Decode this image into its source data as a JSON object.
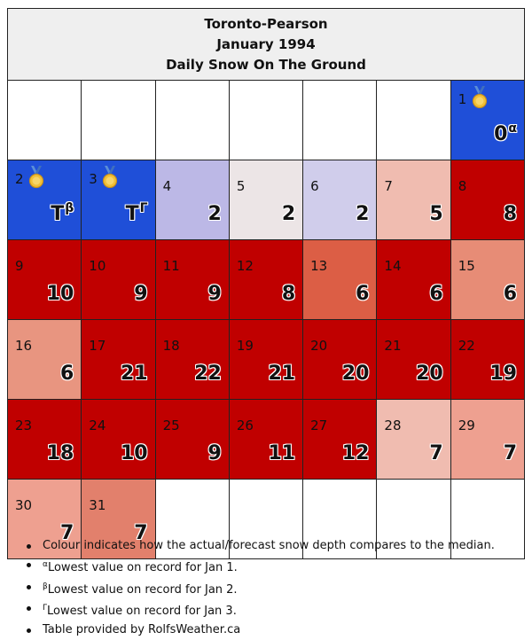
{
  "header": {
    "station": "Toronto-Pearson",
    "month": "January 1994",
    "title": "Daily Snow On The Ground"
  },
  "weeks": [
    [
      null,
      null,
      null,
      null,
      null,
      null,
      {
        "day": "1",
        "value": "0",
        "mark": "α",
        "medal": true,
        "color": "#1f4fd8"
      }
    ],
    [
      {
        "day": "2",
        "value": "T",
        "mark": "β",
        "medal": true,
        "color": "#1f4fd8"
      },
      {
        "day": "3",
        "value": "T",
        "mark": "Γ",
        "medal": true,
        "color": "#1f4fd8"
      },
      {
        "day": "4",
        "value": "2",
        "color": "#bcb8e6"
      },
      {
        "day": "5",
        "value": "2",
        "color": "#ece5e6"
      },
      {
        "day": "6",
        "value": "2",
        "color": "#d0cdeb"
      },
      {
        "day": "7",
        "value": "5",
        "color": "#f0bcb0"
      },
      {
        "day": "8",
        "value": "8",
        "color": "#c00000"
      }
    ],
    [
      {
        "day": "9",
        "value": "10",
        "color": "#c00000"
      },
      {
        "day": "10",
        "value": "9",
        "color": "#c00000"
      },
      {
        "day": "11",
        "value": "9",
        "color": "#c00000"
      },
      {
        "day": "12",
        "value": "8",
        "color": "#c00000"
      },
      {
        "day": "13",
        "value": "6",
        "color": "#dc5e45"
      },
      {
        "day": "14",
        "value": "6",
        "color": "#c00000"
      },
      {
        "day": "15",
        "value": "6",
        "color": "#e78c76"
      }
    ],
    [
      {
        "day": "16",
        "value": "6",
        "color": "#e89580"
      },
      {
        "day": "17",
        "value": "21",
        "color": "#c00000"
      },
      {
        "day": "18",
        "value": "22",
        "color": "#c00000"
      },
      {
        "day": "19",
        "value": "21",
        "color": "#c00000"
      },
      {
        "day": "20",
        "value": "20",
        "color": "#c00000"
      },
      {
        "day": "21",
        "value": "20",
        "color": "#c00000"
      },
      {
        "day": "22",
        "value": "19",
        "color": "#c00000"
      }
    ],
    [
      {
        "day": "23",
        "value": "18",
        "color": "#c00000"
      },
      {
        "day": "24",
        "value": "10",
        "color": "#c00000"
      },
      {
        "day": "25",
        "value": "9",
        "color": "#c00000"
      },
      {
        "day": "26",
        "value": "11",
        "color": "#c00000"
      },
      {
        "day": "27",
        "value": "12",
        "color": "#c00000"
      },
      {
        "day": "28",
        "value": "7",
        "color": "#f0bcb0"
      },
      {
        "day": "29",
        "value": "7",
        "color": "#eea090"
      }
    ],
    [
      {
        "day": "30",
        "value": "7",
        "color": "#eea090"
      },
      {
        "day": "31",
        "value": "7",
        "color": "#e2806c"
      },
      null,
      null,
      null,
      null,
      null
    ]
  ],
  "notes": [
    {
      "mark": "",
      "text": "Colour indicates how the actual/forecast snow depth compares to the median."
    },
    {
      "mark": "α",
      "text": "Lowest value on record for Jan 1."
    },
    {
      "mark": "β",
      "text": "Lowest value on record for Jan 2."
    },
    {
      "mark": "Γ",
      "text": "Lowest value on record for Jan 3."
    },
    {
      "mark": "",
      "text": "Table provided by RolfsWeather.ca"
    }
  ]
}
